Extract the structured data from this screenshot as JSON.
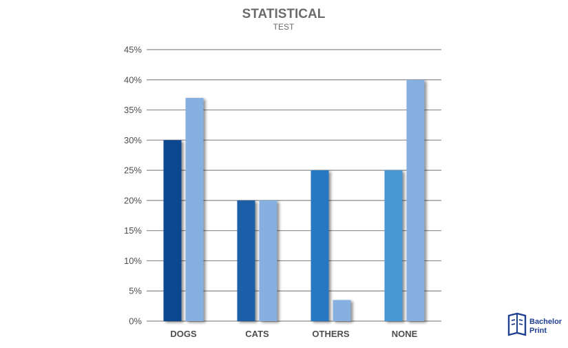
{
  "chart_data": {
    "type": "bar",
    "title": "STATISTICAL",
    "subtitle": "TEST",
    "categories": [
      "DOGS",
      "CATS",
      "OTHERS",
      "NONE"
    ],
    "series": [
      {
        "values": [
          30,
          20,
          25,
          25
        ],
        "colors": [
          "#0d4690",
          "#1f5ea8",
          "#2578c2",
          "#4a98d6"
        ]
      },
      {
        "values": [
          37,
          20,
          3.5,
          40
        ],
        "colors": [
          "#85b0e0",
          "#85b0e0",
          "#85b0e0",
          "#85b0e0"
        ]
      }
    ],
    "yticks": [
      "0%",
      "5%",
      "10%",
      "15%",
      "20%",
      "25%",
      "30%",
      "35%",
      "40%",
      "45%"
    ],
    "ylim": [
      0,
      45
    ],
    "grid": true,
    "xlabel": "",
    "ylabel": ""
  },
  "logo": {
    "line1": "Bachelor",
    "line2": "Print",
    "color": "#1f3f8f"
  }
}
